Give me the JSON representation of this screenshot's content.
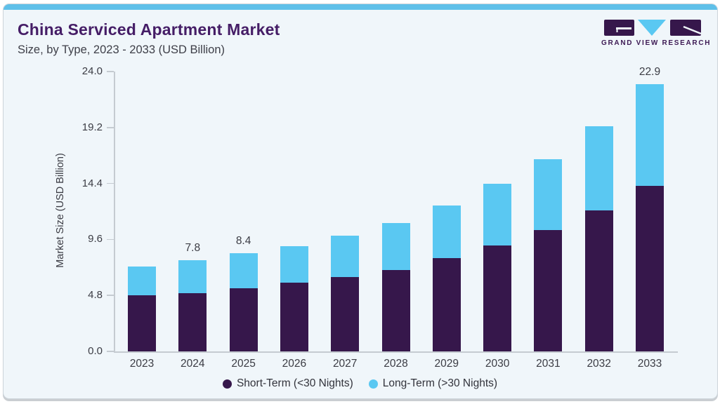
{
  "header": {
    "title": "China Serviced Apartment Market",
    "subtitle": "Size, by Type, 2023 - 2033 (USD Billion)"
  },
  "logo": {
    "brand_name": "GRAND VIEW RESEARCH"
  },
  "colors": {
    "short_term": "#36174b",
    "long_term": "#5ac8f2",
    "title_purple": "#451d66",
    "accent_bar": "#5fc0e9",
    "text": "#3b3c44",
    "axis": "#c5cbd1",
    "card_background": "#f0f6fa"
  },
  "chart_data": {
    "type": "bar",
    "stacked": true,
    "title": "China Serviced Apartment Market Size, by Type, 2023 - 2033 (USD Billion)",
    "categories": [
      "2023",
      "2024",
      "2025",
      "2026",
      "2027",
      "2028",
      "2029",
      "2030",
      "2031",
      "2032",
      "2033"
    ],
    "series": [
      {
        "name": "Short-Term (<30 Nights)",
        "color": "#36174b",
        "values": [
          4.8,
          5.0,
          5.4,
          5.9,
          6.4,
          7.0,
          8.0,
          9.1,
          10.4,
          12.1,
          14.2
        ]
      },
      {
        "name": "Long-Term (>30 Nights)",
        "color": "#5ac8f2",
        "values": [
          2.5,
          2.8,
          3.0,
          3.1,
          3.5,
          4.0,
          4.5,
          5.3,
          6.1,
          7.2,
          8.7
        ]
      }
    ],
    "bar_total_labels": [
      "",
      "7.8",
      "8.4",
      "",
      "",
      "",
      "",
      "",
      "",
      "",
      "22.9"
    ],
    "xlabel": "",
    "ylabel": "Market Size (USD Billion)",
    "yticks": [
      0.0,
      4.8,
      9.6,
      14.4,
      19.2,
      24.0
    ],
    "ytick_labels": [
      "0.0",
      "4.8",
      "9.6",
      "14.4",
      "19.2",
      "24.0"
    ],
    "ylim": [
      0,
      24
    ],
    "grid": false,
    "legend_position": "bottom"
  },
  "legend": {
    "items": [
      {
        "label": "Short-Term (<30 Nights)",
        "color": "#36174b"
      },
      {
        "label": "Long-Term (>30 Nights)",
        "color": "#5ac8f2"
      }
    ]
  }
}
